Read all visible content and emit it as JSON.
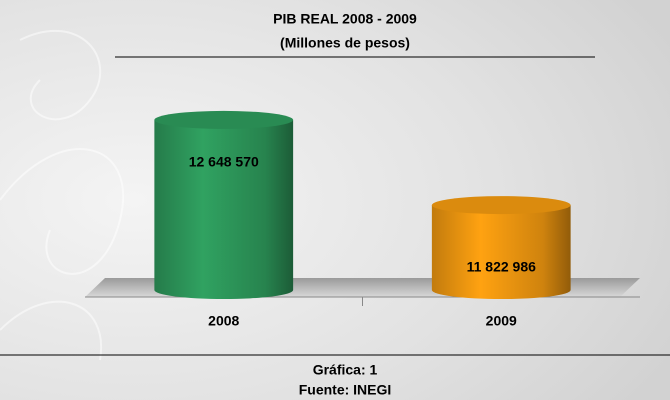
{
  "chart_data": {
    "type": "bar",
    "title": "PIB REAL 2008 - 2009",
    "subtitle": "(Millones de pesos)",
    "categories": [
      "2008",
      "2009"
    ],
    "values": [
      12648570,
      11822986
    ],
    "value_labels": [
      "12 648 570",
      "11 822 986"
    ],
    "colors": [
      "#2e9a5c",
      "#f39a10"
    ],
    "ylim": [
      11000000,
      13200000
    ],
    "grid": false,
    "footer": [
      "Gráfica: 1",
      "Fuente: INEGI"
    ]
  }
}
